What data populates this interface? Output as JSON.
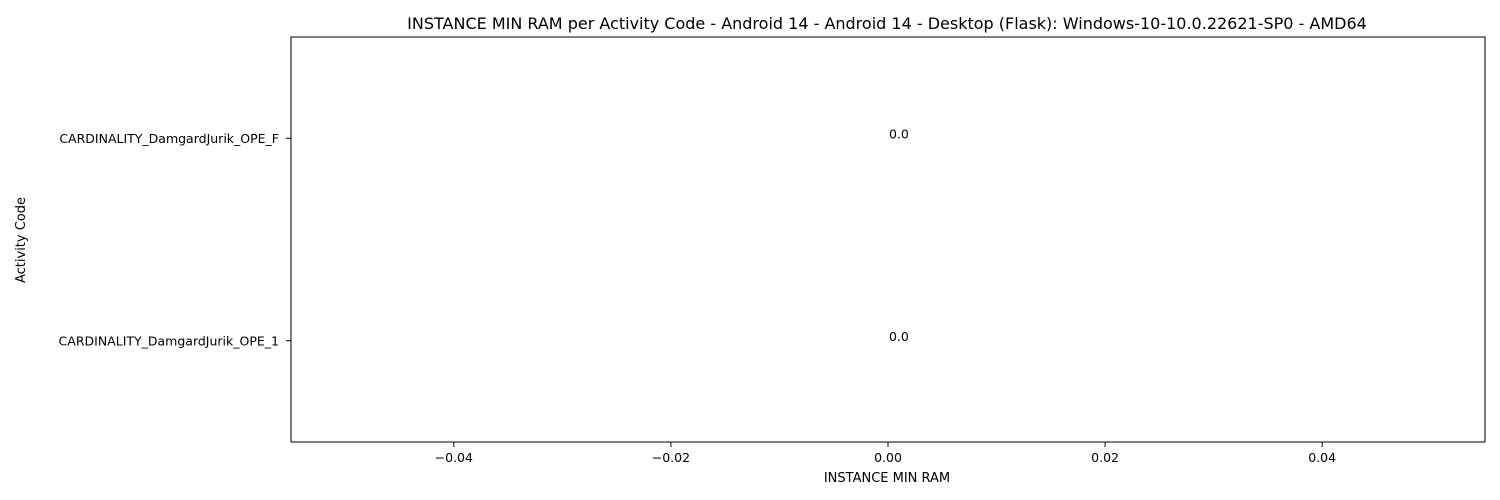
{
  "chart_data": {
    "type": "bar",
    "orientation": "horizontal",
    "title": "INSTANCE MIN RAM per Activity Code - Android 14 - Android 14 - Desktop (Flask): Windows-10-10.0.22621-SP0 - AMD64",
    "xlabel": "INSTANCE MIN RAM",
    "ylabel": "Activity Code",
    "categories": [
      "CARDINALITY_DamgardJurik_OPE_F",
      "CARDINALITY_DamgardJurik_OPE_1"
    ],
    "values": [
      0.0,
      0.0
    ],
    "data_labels": [
      "0.0",
      "0.0"
    ],
    "xlim": [
      -0.055,
      0.055
    ],
    "xticks": [
      -0.04,
      -0.02,
      0.0,
      0.02,
      0.04
    ],
    "xtick_labels": [
      "−0.04",
      "−0.02",
      "0.00",
      "0.02",
      "0.04"
    ],
    "grid": false,
    "colors": {
      "axis": "#000000",
      "background": "#ffffff"
    }
  }
}
